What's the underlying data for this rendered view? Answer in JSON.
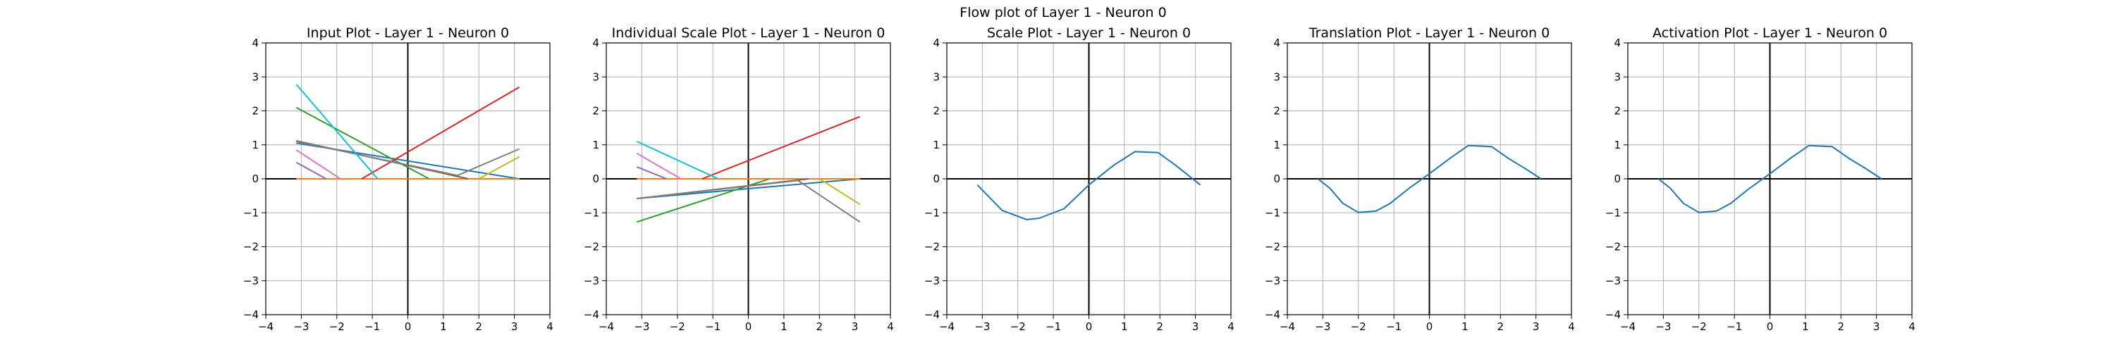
{
  "figure": {
    "suptitle": "Flow plot of Layer 1 - Neuron 0",
    "background": "#ffffff"
  },
  "chart_data": [
    {
      "type": "line",
      "title": "Input Plot - Layer 1 - Neuron 0",
      "xlabel": "",
      "ylabel": "",
      "xlim": [
        -4,
        4
      ],
      "ylim": [
        -4,
        4
      ],
      "xticks": [
        -4,
        -3,
        -2,
        -1,
        0,
        1,
        2,
        3,
        4
      ],
      "yticks": [
        -4,
        -3,
        -2,
        -1,
        0,
        1,
        2,
        3,
        4
      ],
      "grid": true,
      "series": [
        {
          "color": "#1f77b4",
          "x": [
            -3.14,
            3.14
          ],
          "y": [
            1.05,
            0.0
          ]
        },
        {
          "color": "#ff7f0e",
          "x": [
            -3.14,
            3.14
          ],
          "y": [
            0.0,
            0.0
          ]
        },
        {
          "color": "#2ca02c",
          "x": [
            -3.14,
            0.6
          ],
          "y": [
            2.1,
            0.0
          ]
        },
        {
          "color": "#d62728",
          "x": [
            -1.3,
            3.14
          ],
          "y": [
            0.0,
            2.7
          ]
        },
        {
          "color": "#9467bd",
          "x": [
            -3.14,
            -2.3
          ],
          "y": [
            0.48,
            0.0
          ]
        },
        {
          "color": "#8c564b",
          "x": [
            -3.14,
            1.7
          ],
          "y": [
            1.12,
            0.0
          ]
        },
        {
          "color": "#e377c2",
          "x": [
            -3.14,
            -1.9
          ],
          "y": [
            0.85,
            0.0
          ]
        },
        {
          "color": "#7f7f7f",
          "x": [
            -3.14,
            1.4,
            3.14
          ],
          "y": [
            1.1,
            0.1,
            0.88
          ]
        },
        {
          "color": "#bcbd22",
          "x": [
            2.0,
            3.14
          ],
          "y": [
            0.0,
            0.65
          ]
        },
        {
          "color": "#17becf",
          "x": [
            -3.14,
            -0.85
          ],
          "y": [
            2.78,
            0.0
          ]
        }
      ]
    },
    {
      "type": "line",
      "title": "Individual Scale Plot - Layer 1 - Neuron 0",
      "xlabel": "",
      "ylabel": "",
      "xlim": [
        -4,
        4
      ],
      "ylim": [
        -4,
        4
      ],
      "xticks": [
        -4,
        -3,
        -2,
        -1,
        0,
        1,
        2,
        3,
        4
      ],
      "yticks": [
        -4,
        -3,
        -2,
        -1,
        0,
        1,
        2,
        3,
        4
      ],
      "grid": true,
      "series": [
        {
          "color": "#1f77b4",
          "x": [
            -3.14,
            3.14
          ],
          "y": [
            -0.58,
            0.0
          ]
        },
        {
          "color": "#ff7f0e",
          "x": [
            -3.14,
            3.14
          ],
          "y": [
            0.0,
            0.0
          ]
        },
        {
          "color": "#2ca02c",
          "x": [
            -3.14,
            0.6
          ],
          "y": [
            -1.27,
            0.0
          ]
        },
        {
          "color": "#d62728",
          "x": [
            -1.3,
            3.14
          ],
          "y": [
            0.0,
            1.83
          ]
        },
        {
          "color": "#9467bd",
          "x": [
            -3.14,
            -2.3
          ],
          "y": [
            0.35,
            0.0
          ]
        },
        {
          "color": "#8c564b",
          "x": [
            -3.14,
            1.7
          ],
          "y": [
            -0.58,
            0.0
          ]
        },
        {
          "color": "#e377c2",
          "x": [
            -3.14,
            -1.9
          ],
          "y": [
            0.75,
            0.0
          ]
        },
        {
          "color": "#7f7f7f",
          "x": [
            -3.14,
            1.4,
            3.14
          ],
          "y": [
            -0.58,
            -0.05,
            -1.27
          ]
        },
        {
          "color": "#bcbd22",
          "x": [
            2.0,
            3.14
          ],
          "y": [
            0.0,
            -0.75
          ]
        },
        {
          "color": "#17becf",
          "x": [
            -3.14,
            -0.85
          ],
          "y": [
            1.1,
            0.0
          ]
        }
      ]
    },
    {
      "type": "line",
      "title": "Scale Plot - Layer 1 - Neuron 0",
      "xlabel": "",
      "ylabel": "",
      "xlim": [
        -4,
        4
      ],
      "ylim": [
        -4,
        4
      ],
      "xticks": [
        -4,
        -3,
        -2,
        -1,
        0,
        1,
        2,
        3,
        4
      ],
      "yticks": [
        -4,
        -3,
        -2,
        -1,
        0,
        1,
        2,
        3,
        4
      ],
      "grid": true,
      "series": [
        {
          "color": "#1f77b4",
          "x": [
            -3.14,
            -2.44,
            -1.75,
            -1.4,
            -0.7,
            0.0,
            0.7,
            1.3,
            1.95,
            2.44,
            3.14
          ],
          "y": [
            -0.18,
            -0.93,
            -1.2,
            -1.16,
            -0.88,
            -0.18,
            0.4,
            0.8,
            0.77,
            0.4,
            -0.18
          ]
        }
      ]
    },
    {
      "type": "line",
      "title": "Translation Plot - Layer 1 - Neuron 0",
      "xlabel": "",
      "ylabel": "",
      "xlim": [
        -4,
        4
      ],
      "ylim": [
        -4,
        4
      ],
      "xticks": [
        -4,
        -3,
        -2,
        -1,
        0,
        1,
        2,
        3,
        4
      ],
      "yticks": [
        -4,
        -3,
        -2,
        -1,
        0,
        1,
        2,
        3,
        4
      ],
      "grid": true,
      "series": [
        {
          "color": "#1f77b4",
          "x": [
            -3.14,
            -2.8,
            -2.44,
            -2.0,
            -1.5,
            -1.1,
            -0.6,
            0.0,
            0.6,
            1.1,
            1.75,
            2.2,
            2.7,
            3.14
          ],
          "y": [
            0.0,
            -0.28,
            -0.72,
            -0.99,
            -0.95,
            -0.72,
            -0.3,
            0.15,
            0.62,
            0.98,
            0.95,
            0.62,
            0.3,
            0.0
          ]
        }
      ]
    },
    {
      "type": "line",
      "title": "Activation Plot - Layer 1 - Neuron 0",
      "xlabel": "",
      "ylabel": "",
      "xlim": [
        -4,
        4
      ],
      "ylim": [
        -4,
        4
      ],
      "xticks": [
        -4,
        -3,
        -2,
        -1,
        0,
        1,
        2,
        3,
        4
      ],
      "yticks": [
        -4,
        -3,
        -2,
        -1,
        0,
        1,
        2,
        3,
        4
      ],
      "grid": true,
      "series": [
        {
          "color": "#1f77b4",
          "x": [
            -3.14,
            -2.8,
            -2.44,
            -2.0,
            -1.5,
            -1.1,
            -0.6,
            0.0,
            0.6,
            1.1,
            1.75,
            2.2,
            2.7,
            3.14
          ],
          "y": [
            0.0,
            -0.28,
            -0.72,
            -0.99,
            -0.95,
            -0.72,
            -0.3,
            0.15,
            0.62,
            0.98,
            0.95,
            0.62,
            0.3,
            0.0
          ]
        }
      ]
    }
  ]
}
